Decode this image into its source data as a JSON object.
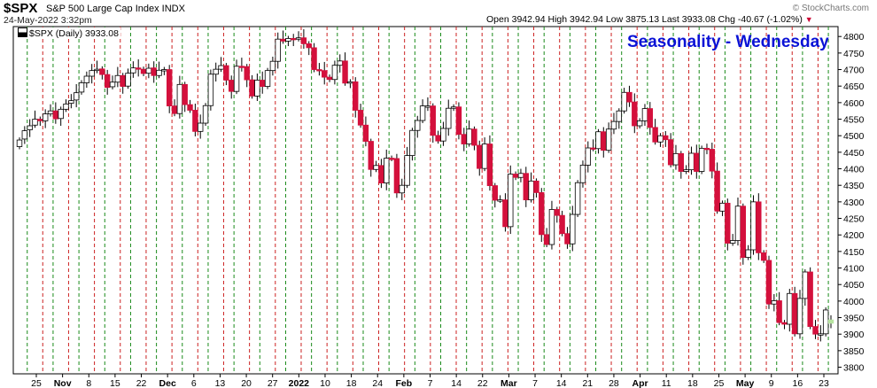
{
  "header": {
    "symbol": "$SPX",
    "description": "S&P 500 Large Cap Index  INDX",
    "datetime": "24-May-2022 3:32pm",
    "open_label": "Open",
    "open": "3942.94",
    "high_label": "High",
    "high": "3942.94",
    "low_label": "Low",
    "low": "3875.13",
    "last_label": "Last",
    "last": "3933.08",
    "chg_label": "Chg",
    "chg": "-40.67 (-1.02%)",
    "watermark": "© StockCharts.com"
  },
  "legend": {
    "text": "$SPX (Daily) 3933.08"
  },
  "overlay": {
    "title": "Seasonality - Wednesday"
  },
  "colors": {
    "up": "#ffffff",
    "down": "#d4103c",
    "wick": "#000000",
    "green_line": "#1a8a1a",
    "red_line": "#cc2222",
    "today": "#b7e4a1",
    "title": "#0a12d6"
  },
  "chart_data": {
    "type": "candlestick",
    "title": "Seasonality - Wednesday",
    "ylim": [
      3780,
      4830
    ],
    "y_ticks": [
      3800,
      3850,
      3900,
      3950,
      4000,
      4050,
      4100,
      4150,
      4200,
      4250,
      4300,
      4350,
      4400,
      4450,
      4500,
      4550,
      4600,
      4650,
      4700,
      4750,
      4800
    ],
    "x_ticks": [
      "25",
      "Nov",
      "8",
      "15",
      "22",
      "Dec",
      "6",
      "13",
      "20",
      "27",
      "2022",
      "10",
      "18",
      "24",
      "Feb",
      "7",
      "14",
      "22",
      "Mar",
      "7",
      "14",
      "21",
      "28",
      "Apr",
      "11",
      "18",
      "25",
      "May",
      "9",
      "16",
      "23"
    ],
    "x_bold": [
      "Nov",
      "Dec",
      "2022",
      "Feb",
      "Mar",
      "Apr",
      "May"
    ],
    "grid": "vertical dashed lines: green at Wednesday opens, red at Wednesday closes",
    "closes": [
      4487,
      4515,
      4530,
      4550,
      4545,
      4566,
      4575,
      4551,
      4580,
      4596,
      4606,
      4630,
      4660,
      4680,
      4697,
      4701,
      4685,
      4646,
      4662,
      4682,
      4649,
      4689,
      4705,
      4701,
      4688,
      4704,
      4682,
      4698,
      4700,
      4590,
      4567,
      4655,
      4594,
      4577,
      4513,
      4538,
      4591,
      4686,
      4701,
      4712,
      4668,
      4634,
      4710,
      4709,
      4669,
      4620,
      4668,
      4649,
      4697,
      4725,
      4792,
      4786,
      4794,
      4793,
      4796,
      4778,
      4766,
      4700,
      4697,
      4677,
      4670,
      4713,
      4726,
      4659,
      4663,
      4577,
      4532,
      4483,
      4398,
      4410,
      4357,
      4432,
      4431,
      4327,
      4350,
      4440,
      4516,
      4546,
      4590,
      4590,
      4501,
      4484,
      4522,
      4583,
      4587,
      4504,
      4475,
      4520,
      4471,
      4401,
      4475,
      4349,
      4305,
      4306,
      4225,
      4384,
      4374,
      4386,
      4306,
      4363,
      4328,
      4201,
      4171,
      4277,
      4259,
      4204,
      4173,
      4262,
      4358,
      4411,
      4463,
      4461,
      4512,
      4456,
      4520,
      4543,
      4575,
      4631,
      4602,
      4530,
      4545,
      4582,
      4525,
      4481,
      4500,
      4488,
      4412,
      4446,
      4392,
      4397,
      4447,
      4392,
      4462,
      4459,
      4393,
      4272,
      4296,
      4175,
      4183,
      4287,
      4132,
      4155,
      4300,
      4146,
      4123,
      3991,
      4001,
      3935,
      3930,
      4023,
      3901,
      4008,
      4088,
      3923,
      3900,
      3901,
      3973,
      3933
    ],
    "opens": [
      4467,
      4490,
      4518,
      4532,
      4550,
      4545,
      4566,
      4575,
      4552,
      4580,
      4598,
      4608,
      4632,
      4660,
      4680,
      4697,
      4702,
      4685,
      4648,
      4662,
      4682,
      4650,
      4690,
      4705,
      4701,
      4689,
      4705,
      4682,
      4698,
      4700,
      4590,
      4567,
      4655,
      4594,
      4577,
      4513,
      4538,
      4591,
      4686,
      4701,
      4712,
      4668,
      4634,
      4710,
      4709,
      4669,
      4620,
      4668,
      4649,
      4697,
      4725,
      4792,
      4786,
      4794,
      4793,
      4796,
      4778,
      4766,
      4700,
      4697,
      4677,
      4670,
      4713,
      4726,
      4659,
      4663,
      4577,
      4532,
      4483,
      4398,
      4410,
      4357,
      4432,
      4431,
      4327,
      4350,
      4440,
      4516,
      4546,
      4590,
      4590,
      4501,
      4484,
      4522,
      4583,
      4587,
      4504,
      4475,
      4520,
      4471,
      4401,
      4475,
      4349,
      4305,
      4306,
      4225,
      4384,
      4374,
      4386,
      4306,
      4363,
      4328,
      4201,
      4171,
      4277,
      4259,
      4204,
      4173,
      4262,
      4358,
      4411,
      4463,
      4461,
      4512,
      4456,
      4520,
      4543,
      4575,
      4631,
      4602,
      4530,
      4545,
      4582,
      4525,
      4481,
      4500,
      4488,
      4412,
      4446,
      4392,
      4397,
      4447,
      4392,
      4462,
      4459,
      4393,
      4272,
      4296,
      4175,
      4183,
      4287,
      4132,
      4155,
      4300,
      4146,
      4123,
      3991,
      4001,
      3935,
      3930,
      4023,
      3901,
      4008,
      4088,
      3923,
      3900,
      3901,
      3943
    ]
  }
}
